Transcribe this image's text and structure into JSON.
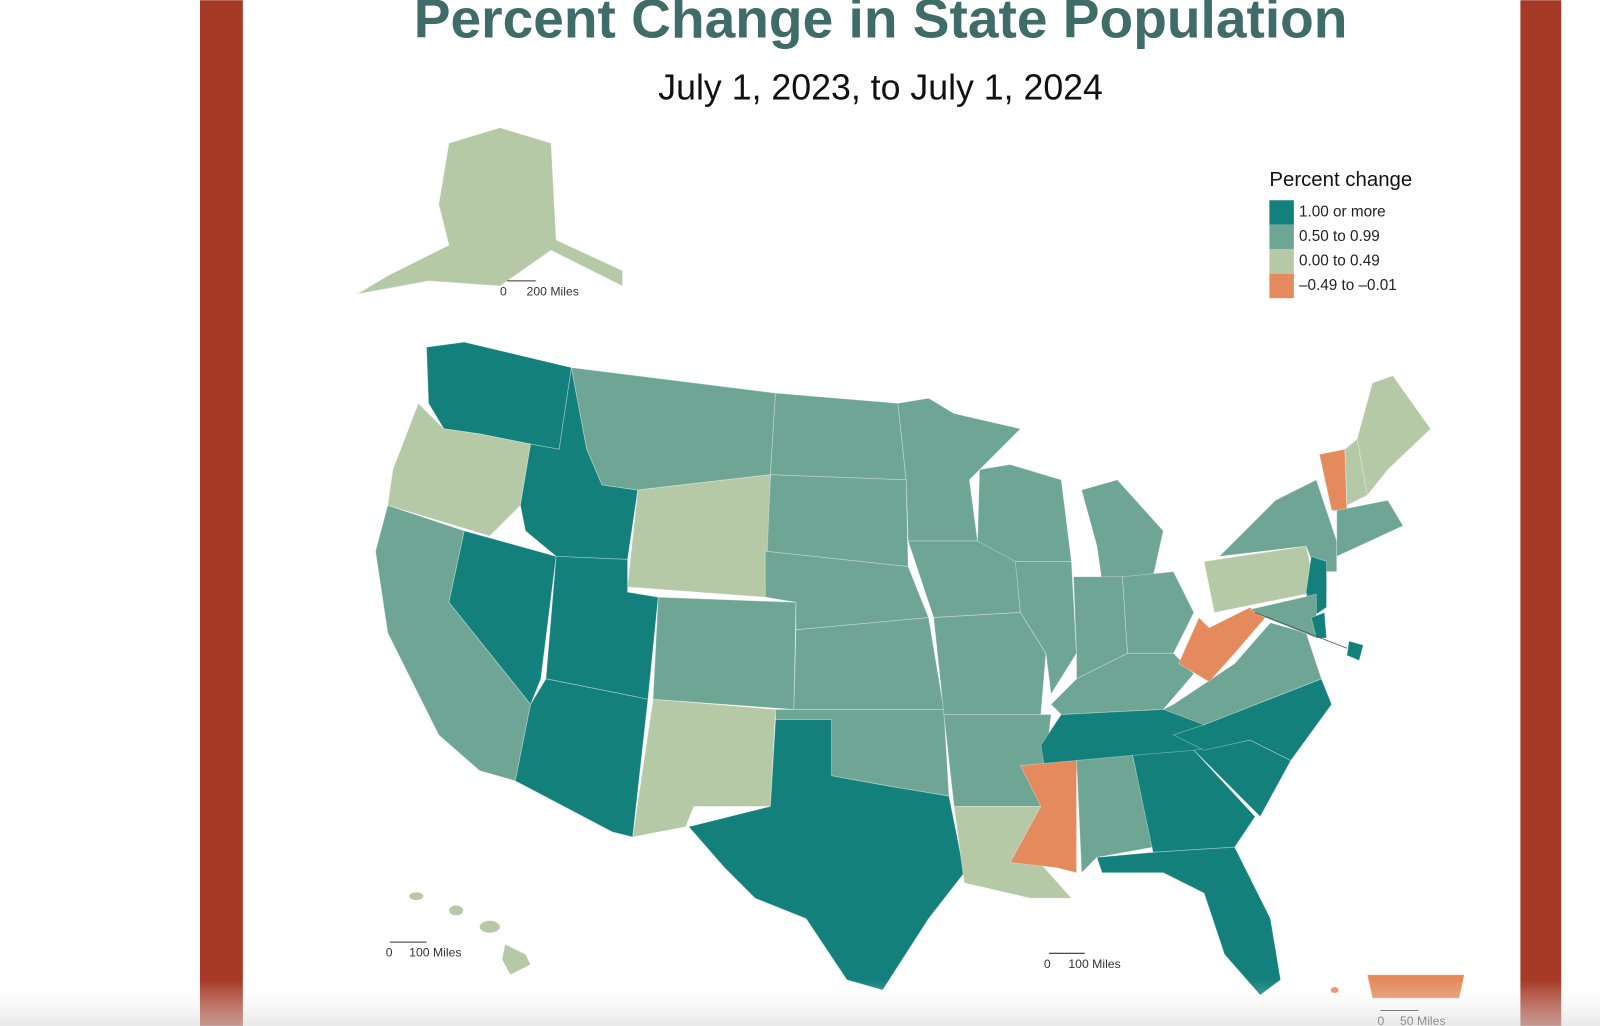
{
  "title": "Percent Change in State Population",
  "subtitle": "July 1, 2023, to July 1, 2024",
  "legend": {
    "title": "Percent change",
    "items": [
      {
        "label": "1.00 or more",
        "color": "#13807c"
      },
      {
        "label": "0.50 to 0.99",
        "color": "#6fa595"
      },
      {
        "label": "0.00 to 0.49",
        "color": "#b5c9a7"
      },
      {
        "label": "–0.49 to –0.01",
        "color": "#e58a5c"
      }
    ]
  },
  "scales": [
    {
      "zero": "0",
      "label": "200 Miles"
    },
    {
      "zero": "0",
      "label": "100 Miles"
    },
    {
      "zero": "0",
      "label": "100 Miles"
    },
    {
      "zero": "0",
      "label": "50 Miles"
    }
  ]
}
